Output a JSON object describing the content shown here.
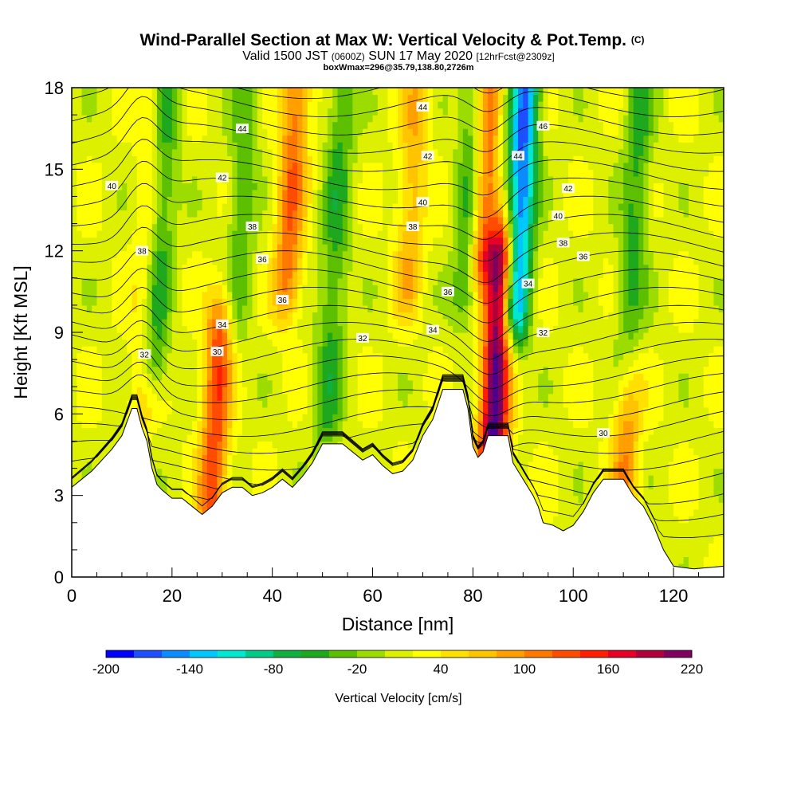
{
  "title": {
    "main": "Wind-Parallel Section at Max W: Vertical Velocity & Pot.Temp.",
    "main_suffix": "(C)",
    "valid_prefix": "Valid 1500 JST",
    "valid_utc": "(0600Z)",
    "valid_date": "SUN 17 May 2020",
    "forecast_info": "[12hrFcst@2309z]",
    "box_info": "boxWmax=296@35.79,138.80,2726m"
  },
  "chart_data": {
    "type": "heatmap",
    "xlabel": "Distance [nm]",
    "ylabel": "Height [Kft MSL]",
    "xlim": [
      0,
      130
    ],
    "ylim": [
      0,
      18
    ],
    "x_ticks": [
      "0",
      "20",
      "40",
      "60",
      "80",
      "100",
      "120"
    ],
    "y_ticks": [
      "0",
      "3",
      "6",
      "9",
      "12",
      "15",
      "18"
    ],
    "colorbar": {
      "label": "Vertical Velocity [cm/s]",
      "min": -200,
      "max": 220,
      "step": 20,
      "tick_labels": [
        "-200",
        "-140",
        "-80",
        "-20",
        "40",
        "100",
        "160",
        "220"
      ],
      "colors": [
        "#0000ff",
        "#1d4fff",
        "#0a8cff",
        "#00c8ff",
        "#00e8d0",
        "#00cc88",
        "#10b040",
        "#1ea81e",
        "#5cc000",
        "#9ddc00",
        "#dcf000",
        "#ffff00",
        "#ffe000",
        "#ffc400",
        "#ffa000",
        "#ff7800",
        "#ff4c00",
        "#ff1e00",
        "#e60026",
        "#b0003c",
        "#800060",
        "#4b0090"
      ]
    },
    "terrain_kft": [
      [
        0,
        3.3
      ],
      [
        2,
        3.6
      ],
      [
        4,
        3.9
      ],
      [
        6,
        4.3
      ],
      [
        8,
        4.7
      ],
      [
        10,
        5.2
      ],
      [
        11,
        5.7
      ],
      [
        12,
        6.2
      ],
      [
        13,
        6.2
      ],
      [
        14,
        5.5
      ],
      [
        15,
        5.0
      ],
      [
        16,
        4.0
      ],
      [
        17,
        3.4
      ],
      [
        18,
        3.2
      ],
      [
        20,
        2.9
      ],
      [
        22,
        2.9
      ],
      [
        24,
        2.6
      ],
      [
        26,
        2.3
      ],
      [
        28,
        2.6
      ],
      [
        30,
        3.1
      ],
      [
        32,
        3.3
      ],
      [
        34,
        3.3
      ],
      [
        36,
        3.0
      ],
      [
        38,
        3.1
      ],
      [
        40,
        3.3
      ],
      [
        42,
        3.6
      ],
      [
        44,
        3.3
      ],
      [
        46,
        3.7
      ],
      [
        48,
        4.2
      ],
      [
        50,
        4.9
      ],
      [
        54,
        4.9
      ],
      [
        58,
        4.3
      ],
      [
        60,
        4.5
      ],
      [
        62,
        4.1
      ],
      [
        64,
        3.8
      ],
      [
        66,
        3.9
      ],
      [
        68,
        4.3
      ],
      [
        70,
        5.2
      ],
      [
        72,
        5.8
      ],
      [
        74,
        6.9
      ],
      [
        78,
        6.9
      ],
      [
        79,
        6.2
      ],
      [
        80,
        4.8
      ],
      [
        81,
        4.4
      ],
      [
        82,
        4.6
      ],
      [
        83,
        5.2
      ],
      [
        87,
        5.2
      ],
      [
        88,
        4.2
      ],
      [
        90,
        3.6
      ],
      [
        92,
        3.0
      ],
      [
        93,
        2.6
      ],
      [
        94,
        2.0
      ],
      [
        96,
        1.9
      ],
      [
        98,
        1.7
      ],
      [
        100,
        1.9
      ],
      [
        102,
        2.4
      ],
      [
        104,
        3.1
      ],
      [
        106,
        3.6
      ],
      [
        110,
        3.6
      ],
      [
        112,
        3.0
      ],
      [
        114,
        2.6
      ],
      [
        116,
        1.9
      ],
      [
        118,
        1.0
      ],
      [
        120,
        0.4
      ],
      [
        124,
        0.3
      ],
      [
        130,
        0.4
      ]
    ],
    "updraft_axes": [
      {
        "x": 28,
        "y0": 3,
        "y1": 9,
        "w": 120
      },
      {
        "x": 43,
        "y0": 11,
        "y1": 18,
        "w": 100
      },
      {
        "x": 84,
        "y0": 5,
        "y1": 11.5,
        "w": 220
      },
      {
        "x": 81.5,
        "y0": 12,
        "y1": 18,
        "w": 130
      },
      {
        "x": 67,
        "y0": 11,
        "y1": 18,
        "w": 60
      },
      {
        "x": 110,
        "y0": 3,
        "y1": 7,
        "w": 80
      },
      {
        "x": 14.5,
        "y0": 7,
        "y1": 18,
        "w": 80
      }
    ],
    "downdraft_axes": [
      {
        "x": 88.5,
        "y0": 10,
        "y1": 18,
        "w": -180
      },
      {
        "x": 16,
        "y0": 8,
        "y1": 18,
        "w": -110
      },
      {
        "x": 51,
        "y0": 6,
        "y1": 18,
        "w": -60
      },
      {
        "x": 79,
        "y0": 11,
        "y1": 18,
        "w": -90
      },
      {
        "x": 111,
        "y0": 8,
        "y1": 18,
        "w": -60
      },
      {
        "x": 33,
        "y0": 10,
        "y1": 18,
        "w": -50
      }
    ],
    "isentrope_labels": [
      "30",
      "32",
      "34",
      "36",
      "38",
      "40",
      "42",
      "44",
      "46"
    ]
  }
}
